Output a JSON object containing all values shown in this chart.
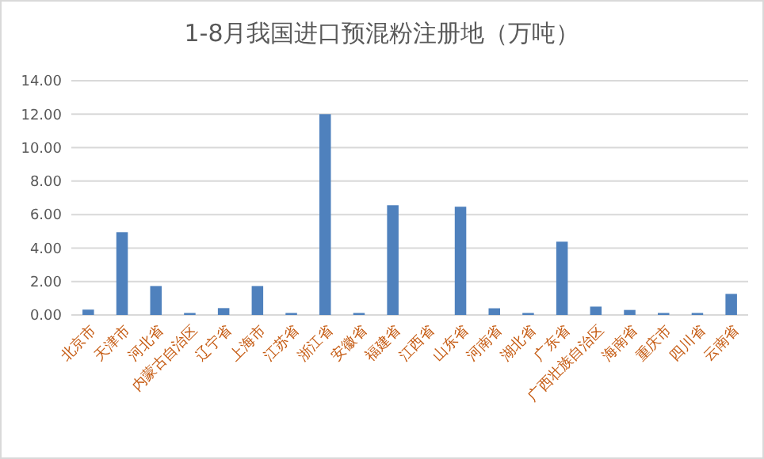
{
  "chart_data": {
    "type": "bar",
    "title": "1-8月我国进口预混粉注册地（万吨）",
    "categories": [
      "北京市",
      "天津市",
      "河北省",
      "内蒙古自治区",
      "辽宁省",
      "上海市",
      "江苏省",
      "浙江省",
      "安徽省",
      "福建省",
      "江西省",
      "山东省",
      "河南省",
      "湖北省",
      "广东省",
      "广西壮族自治区",
      "海南省",
      "重庆市",
      "四川省",
      "云南省"
    ],
    "values": [
      0.32,
      4.95,
      1.73,
      0.12,
      0.41,
      1.73,
      0.12,
      12.0,
      0.12,
      6.56,
      0,
      6.47,
      0.4,
      0.12,
      4.38,
      0.5,
      0.3,
      0.12,
      0.12,
      1.26
    ],
    "color": "#4f81bd",
    "ylim": [
      0,
      14
    ],
    "yticks": [
      {
        "value": 0,
        "label": "0.00"
      },
      {
        "value": 2,
        "label": "2.00"
      },
      {
        "value": 4,
        "label": "4.00"
      },
      {
        "value": 6,
        "label": "6.00"
      },
      {
        "value": 8,
        "label": "8.00"
      },
      {
        "value": 10,
        "label": "10.00"
      },
      {
        "value": 12,
        "label": "12.00"
      },
      {
        "value": 14,
        "label": "14.00"
      }
    ],
    "grid": "y"
  }
}
